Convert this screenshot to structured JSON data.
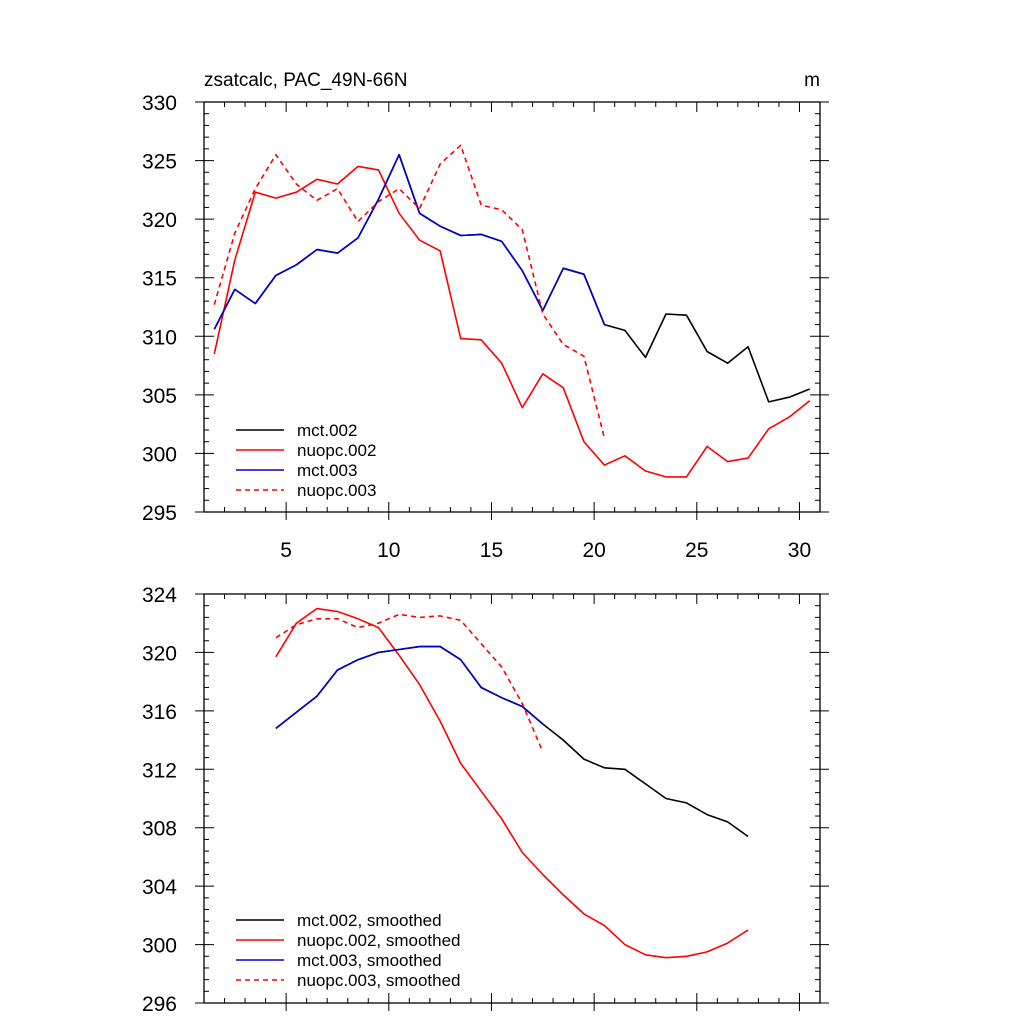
{
  "colors": {
    "black": "#000000",
    "red": "#ff0000",
    "blue": "#0000cc"
  },
  "chart_data": [
    {
      "type": "line",
      "title": "zsatcalc, PAC_49N-66N",
      "units_label": "m",
      "xlim": [
        1,
        31
      ],
      "ylim": [
        295,
        330
      ],
      "xticks": [
        5,
        10,
        15,
        20,
        25,
        30
      ],
      "yticks": [
        295,
        300,
        305,
        310,
        315,
        320,
        325,
        330
      ],
      "show_x_tick_labels": true,
      "legend_position": "bottom-left",
      "series": [
        {
          "name": "mct.002",
          "color": "#000000",
          "dash": "solid",
          "x": [
            1.5,
            2.5,
            3.5,
            4.5,
            5.5,
            6.5,
            7.5,
            8.5,
            9.5,
            10.5,
            11.5,
            12.5,
            13.5,
            14.5,
            15.5,
            16.5,
            17.5,
            18.5,
            19.5,
            20.5,
            21.5,
            22.5,
            23.5,
            24.5,
            25.5,
            26.5,
            27.5,
            28.5,
            29.5,
            30.5
          ],
          "y": [
            310.6,
            314.0,
            312.8,
            315.2,
            316.1,
            317.4,
            317.1,
            318.4,
            321.7,
            325.5,
            320.5,
            319.4,
            318.6,
            318.7,
            318.1,
            315.6,
            312.2,
            315.8,
            315.3,
            311.0,
            310.5,
            308.2,
            311.9,
            311.8,
            308.7,
            307.7,
            309.1,
            304.4,
            304.8,
            305.5
          ]
        },
        {
          "name": "nuopc.002",
          "color": "#ff0000",
          "dash": "solid",
          "x": [
            1.5,
            2.5,
            3.5,
            4.5,
            5.5,
            6.5,
            7.5,
            8.5,
            9.5,
            10.5,
            11.5,
            12.5,
            13.5,
            14.5,
            15.5,
            16.5,
            17.5,
            18.5,
            19.5,
            20.5,
            21.5,
            22.5,
            23.5,
            24.5,
            25.5,
            26.5,
            27.5,
            28.5,
            29.5,
            30.5
          ],
          "y": [
            308.5,
            316.5,
            322.3,
            321.8,
            322.3,
            323.4,
            323.0,
            324.5,
            324.2,
            320.5,
            318.2,
            317.3,
            309.8,
            309.7,
            307.7,
            303.9,
            306.8,
            305.6,
            301.0,
            299.0,
            299.8,
            298.5,
            298.0,
            298.0,
            300.6,
            299.3,
            299.6,
            302.1,
            303.1,
            304.5
          ]
        },
        {
          "name": "mct.003",
          "color": "#0000cc",
          "dash": "solid",
          "x": [
            1.5,
            2.5,
            3.5,
            4.5,
            5.5,
            6.5,
            7.5,
            8.5,
            9.5,
            10.5,
            11.5,
            12.5,
            13.5,
            14.5,
            15.5,
            16.5,
            17.5,
            18.5,
            19.5,
            20.5
          ],
          "y": [
            310.6,
            314.0,
            312.8,
            315.2,
            316.1,
            317.4,
            317.1,
            318.4,
            321.7,
            325.5,
            320.5,
            319.4,
            318.6,
            318.7,
            318.1,
            315.6,
            312.2,
            315.8,
            315.3,
            311.0
          ]
        },
        {
          "name": "nuopc.003",
          "color": "#ff0000",
          "dash": "dashed",
          "x": [
            1.5,
            2.5,
            3.5,
            4.5,
            5.5,
            6.5,
            7.5,
            8.5,
            9.5,
            10.5,
            11.5,
            12.5,
            13.5,
            14.5,
            15.5,
            16.5,
            17.5,
            18.5,
            19.5,
            20.5
          ],
          "y": [
            312.7,
            318.8,
            322.6,
            325.5,
            323.0,
            321.6,
            322.6,
            319.8,
            321.5,
            322.6,
            320.9,
            324.7,
            326.3,
            321.2,
            320.8,
            319.1,
            311.9,
            309.3,
            308.3,
            301.3
          ]
        }
      ]
    },
    {
      "type": "line",
      "xlim": [
        1,
        31
      ],
      "ylim": [
        296,
        324
      ],
      "xticks": [
        5,
        10,
        15,
        20,
        25,
        30
      ],
      "yticks": [
        296,
        300,
        304,
        308,
        312,
        316,
        320,
        324
      ],
      "show_x_tick_labels": false,
      "legend_position": "bottom-left",
      "series": [
        {
          "name": "mct.002, smoothed",
          "color": "#000000",
          "dash": "solid",
          "x": [
            4.5,
            5.5,
            6.5,
            7.5,
            8.5,
            9.5,
            10.5,
            11.5,
            12.5,
            13.5,
            14.5,
            15.5,
            16.5,
            17.5,
            18.5,
            19.5,
            20.5,
            21.5,
            22.5,
            23.5,
            24.5,
            25.5,
            26.5,
            27.5
          ],
          "y": [
            314.8,
            315.9,
            317.0,
            318.8,
            319.5,
            320.0,
            320.2,
            320.4,
            320.4,
            319.5,
            317.6,
            316.9,
            316.3,
            315.1,
            314.0,
            312.7,
            312.1,
            312.0,
            311.0,
            310.0,
            309.7,
            308.9,
            308.4,
            307.4
          ]
        },
        {
          "name": "nuopc.002, smoothed",
          "color": "#ff0000",
          "dash": "solid",
          "x": [
            4.5,
            5.5,
            6.5,
            7.5,
            8.5,
            9.5,
            10.5,
            11.5,
            12.5,
            13.5,
            14.5,
            15.5,
            16.5,
            17.5,
            18.5,
            19.5,
            20.5,
            21.5,
            22.5,
            23.5,
            24.5,
            25.5,
            26.5,
            27.5
          ],
          "y": [
            319.7,
            322.0,
            323.0,
            322.8,
            322.3,
            321.7,
            319.8,
            317.8,
            315.3,
            312.4,
            310.5,
            308.6,
            306.3,
            304.8,
            303.4,
            302.1,
            301.3,
            300.0,
            299.3,
            299.1,
            299.2,
            299.5,
            300.1,
            301.0
          ]
        },
        {
          "name": "mct.003, smoothed",
          "color": "#0000cc",
          "dash": "solid",
          "x": [
            4.5,
            5.5,
            6.5,
            7.5,
            8.5,
            9.5,
            10.5,
            11.5,
            12.5,
            13.5,
            14.5,
            15.5,
            16.5,
            17.5
          ],
          "y": [
            314.8,
            315.9,
            317.0,
            318.8,
            319.5,
            320.0,
            320.2,
            320.4,
            320.4,
            319.5,
            317.6,
            316.9,
            316.3,
            315.1
          ]
        },
        {
          "name": "nuopc.003, smoothed",
          "color": "#ff0000",
          "dash": "dashed",
          "x": [
            4.5,
            5.5,
            6.5,
            7.5,
            8.5,
            9.5,
            10.5,
            11.5,
            12.5,
            13.5,
            14.5,
            15.5,
            16.5,
            17.5
          ],
          "y": [
            321.0,
            321.9,
            322.3,
            322.3,
            321.7,
            322.0,
            322.6,
            322.4,
            322.5,
            322.2,
            320.6,
            319.0,
            316.5,
            313.2
          ]
        }
      ]
    }
  ]
}
